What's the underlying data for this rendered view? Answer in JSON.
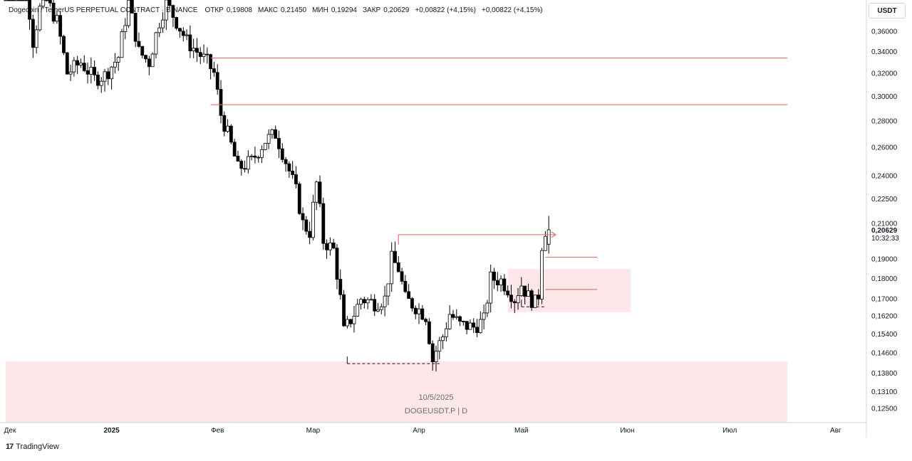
{
  "header": {
    "pair_title": "Dogecoin / TetherUS PERPETUAL CONTRACT · BINANCE",
    "open_label": "ОТКР",
    "open_value": "0,19808",
    "high_label": "МАКС",
    "high_value": "0,21450",
    "low_label": "МИН",
    "low_value": "0,19294",
    "close_label": "ЗАКР",
    "close_value": "0,20629",
    "change_1": "+0,00822 (+4,15%)",
    "change_2": "+0,00822 (+4,15%)"
  },
  "currency_button": "USDT",
  "watermark": {
    "date": "10/5/2025",
    "symbol": "DOGEUSDT.P | D"
  },
  "brand": {
    "logo": "17",
    "name": "TradingView"
  },
  "last_price": {
    "value": "0,20629",
    "countdown": "10:32:33"
  },
  "colors": {
    "candle_body_up": "#ffffff",
    "candle_body_down": "#000000",
    "level_line": "#e57373",
    "zone_fill": "#fde7e9",
    "grid": "#e0e3eb"
  },
  "chart_data": {
    "type": "candlestick",
    "symbol": "DOGEUSDT.P",
    "timeframe": "D",
    "y_scale": "log",
    "ylim": [
      0.118,
      0.395
    ],
    "y_ticks": [
      0.36,
      0.34,
      0.32,
      0.3,
      0.28,
      0.26,
      0.24,
      0.225,
      0.21,
      0.19,
      0.18,
      0.17,
      0.162,
      0.154,
      0.146,
      0.138,
      0.131,
      0.125
    ],
    "y_tick_labels": [
      "0,36000",
      "0,34000",
      "0,32000",
      "0,30000",
      "0,28000",
      "0,26000",
      "0,24000",
      "0,22500",
      "0,21000",
      "0,19000",
      "0,18000",
      "0,17000",
      "0,16200",
      "0,15400",
      "0,14600",
      "0,13800",
      "0,13100",
      "0,12500"
    ],
    "x_range": [
      "2024-12-01",
      "2025-08-10"
    ],
    "x_ticks": [
      {
        "date": "2024-12-01",
        "label": "Дек"
      },
      {
        "date": "2025-01-01",
        "label": "2025"
      },
      {
        "date": "2025-02-01",
        "label": "Фев"
      },
      {
        "date": "2025-03-01",
        "label": "Мар"
      },
      {
        "date": "2025-04-01",
        "label": "Апр"
      },
      {
        "date": "2025-05-01",
        "label": "Май"
      },
      {
        "date": "2025-06-01",
        "label": "Июн"
      },
      {
        "date": "2025-07-01",
        "label": "Июл"
      },
      {
        "date": "2025-08-01",
        "label": "Авг"
      }
    ],
    "anchors": [
      {
        "date": "2024-12-01",
        "close": 0.42
      },
      {
        "date": "2024-12-05",
        "close": 0.43
      },
      {
        "date": "2024-12-08",
        "close": 0.41
      },
      {
        "date": "2024-12-10",
        "close": 0.35
      },
      {
        "date": "2024-12-13",
        "close": 0.4
      },
      {
        "date": "2024-12-17",
        "close": 0.37
      },
      {
        "date": "2024-12-20",
        "close": 0.32
      },
      {
        "date": "2024-12-24",
        "close": 0.33
      },
      {
        "date": "2024-12-28",
        "close": 0.315
      },
      {
        "date": "2024-12-31",
        "close": 0.318
      },
      {
        "date": "2025-01-04",
        "close": 0.335
      },
      {
        "date": "2025-01-07",
        "close": 0.39
      },
      {
        "date": "2025-01-10",
        "close": 0.34
      },
      {
        "date": "2025-01-13",
        "close": 0.33
      },
      {
        "date": "2025-01-16",
        "close": 0.37
      },
      {
        "date": "2025-01-18",
        "close": 0.39
      },
      {
        "date": "2025-01-21",
        "close": 0.37
      },
      {
        "date": "2025-01-24",
        "close": 0.35
      },
      {
        "date": "2025-01-27",
        "close": 0.34
      },
      {
        "date": "2025-01-30",
        "close": 0.33
      },
      {
        "date": "2025-02-01",
        "close": 0.32
      },
      {
        "date": "2025-02-03",
        "close": 0.285
      },
      {
        "date": "2025-02-05",
        "close": 0.27
      },
      {
        "date": "2025-02-08",
        "close": 0.245
      },
      {
        "date": "2025-02-12",
        "close": 0.25
      },
      {
        "date": "2025-02-16",
        "close": 0.265
      },
      {
        "date": "2025-02-19",
        "close": 0.27
      },
      {
        "date": "2025-02-22",
        "close": 0.25
      },
      {
        "date": "2025-02-25",
        "close": 0.23
      },
      {
        "date": "2025-02-27",
        "close": 0.21
      },
      {
        "date": "2025-03-01",
        "close": 0.205
      },
      {
        "date": "2025-03-03",
        "close": 0.235
      },
      {
        "date": "2025-03-05",
        "close": 0.2
      },
      {
        "date": "2025-03-08",
        "close": 0.195
      },
      {
        "date": "2025-03-10",
        "close": 0.17
      },
      {
        "date": "2025-03-11",
        "close": 0.155
      },
      {
        "date": "2025-03-14",
        "close": 0.163
      },
      {
        "date": "2025-03-16",
        "close": 0.17
      },
      {
        "date": "2025-03-20",
        "close": 0.168
      },
      {
        "date": "2025-03-23",
        "close": 0.17
      },
      {
        "date": "2025-03-25",
        "close": 0.19
      },
      {
        "date": "2025-03-27",
        "close": 0.185
      },
      {
        "date": "2025-03-29",
        "close": 0.17
      },
      {
        "date": "2025-04-02",
        "close": 0.165
      },
      {
        "date": "2025-04-04",
        "close": 0.162
      },
      {
        "date": "2025-04-06",
        "close": 0.143
      },
      {
        "date": "2025-04-07",
        "close": 0.147
      },
      {
        "date": "2025-04-09",
        "close": 0.153
      },
      {
        "date": "2025-04-11",
        "close": 0.163
      },
      {
        "date": "2025-04-14",
        "close": 0.158
      },
      {
        "date": "2025-04-18",
        "close": 0.157
      },
      {
        "date": "2025-04-21",
        "close": 0.16
      },
      {
        "date": "2025-04-23",
        "close": 0.18
      },
      {
        "date": "2025-04-26",
        "close": 0.179
      },
      {
        "date": "2025-04-28",
        "close": 0.175
      },
      {
        "date": "2025-04-30",
        "close": 0.17
      },
      {
        "date": "2025-05-02",
        "close": 0.177
      },
      {
        "date": "2025-05-04",
        "close": 0.171
      },
      {
        "date": "2025-05-06",
        "close": 0.168
      },
      {
        "date": "2025-05-07",
        "close": 0.172
      },
      {
        "date": "2025-05-08",
        "close": 0.198
      },
      {
        "date": "2025-05-09",
        "close": 0.20629
      }
    ],
    "drawings": {
      "resistance_lines": [
        {
          "price": 0.334,
          "from": "2025-01-30",
          "to": "2025-08-10"
        },
        {
          "price": 0.293,
          "from": "2025-01-30",
          "to": "2025-08-10"
        }
      ],
      "breakout_line": {
        "price": 0.2035,
        "from": "2025-03-26",
        "to": "2025-05-10"
      },
      "short_levels": [
        {
          "price": 0.191,
          "from": "2025-05-08",
          "to": "2025-06-01"
        },
        {
          "price": 0.1745,
          "from": "2025-05-08",
          "to": "2025-06-01"
        }
      ],
      "zones": [
        {
          "from": "2025-04-27",
          "to": "2025-06-02",
          "low": 0.1638,
          "high": 0.1848
        },
        {
          "from": "2024-12-01",
          "to": "2025-08-10",
          "low": 0.118,
          "high": 0.1426
        }
      ],
      "dashed_lines": [
        {
          "price": 0.1417,
          "from": "2025-03-11",
          "to": "2025-04-07"
        },
        {
          "price": 0.1662,
          "from": "2025-05-01",
          "to": "2025-05-08"
        }
      ]
    }
  }
}
